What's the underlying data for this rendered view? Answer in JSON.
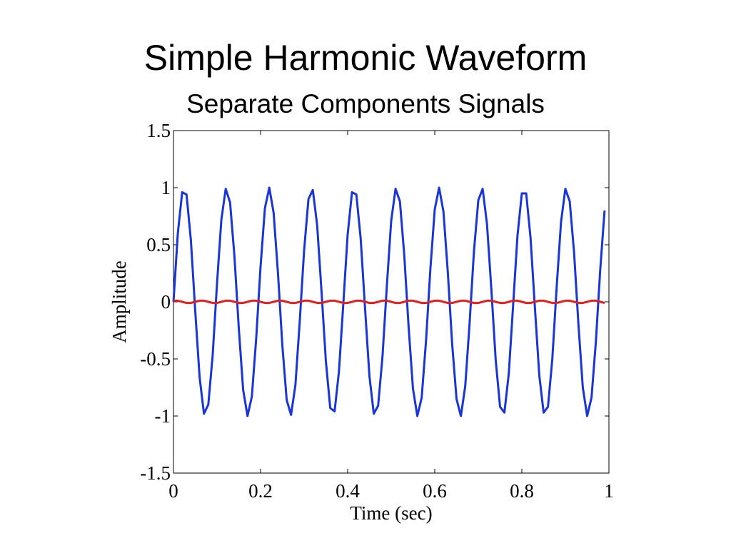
{
  "chart_data": {
    "type": "line",
    "title": "Simple Harmonic Waveform",
    "subtitle": "Separate Components Signals",
    "x_label": "Time (sec)",
    "y_label": "Amplitude",
    "xlim": [
      0,
      1
    ],
    "xticks": [
      0,
      0.2,
      0.4,
      0.6,
      0.8,
      1
    ],
    "ylim": [
      -1.5,
      1.5
    ],
    "yticks": [
      -1.5,
      -1,
      -0.5,
      0,
      0.5,
      1,
      1.5
    ],
    "x": [
      0,
      0.01,
      0.02,
      0.03,
      0.04,
      0.05,
      0.06,
      0.07,
      0.08,
      0.09,
      0.1,
      0.11,
      0.12,
      0.13,
      0.14,
      0.15,
      0.16,
      0.17,
      0.18,
      0.19,
      0.2,
      0.21,
      0.22,
      0.23,
      0.24,
      0.25,
      0.26,
      0.27,
      0.28,
      0.29,
      0.3,
      0.31,
      0.32,
      0.33,
      0.34,
      0.35,
      0.36,
      0.37,
      0.38,
      0.39,
      0.4,
      0.41,
      0.42,
      0.43,
      0.44,
      0.45,
      0.46,
      0.47,
      0.48,
      0.49,
      0.5,
      0.51,
      0.52,
      0.53,
      0.54,
      0.55,
      0.56,
      0.57,
      0.58,
      0.59,
      0.6,
      0.61,
      0.62,
      0.63,
      0.64,
      0.65,
      0.66,
      0.67,
      0.68,
      0.69,
      0.7,
      0.71,
      0.72,
      0.73,
      0.74,
      0.75,
      0.76,
      0.77,
      0.78,
      0.79,
      0.8,
      0.81,
      0.82,
      0.83,
      0.84,
      0.85,
      0.86,
      0.87,
      0.88,
      0.89,
      0.9,
      0.91,
      0.92,
      0.93,
      0.94,
      0.95,
      0.96,
      0.97,
      0.98,
      0.99
    ],
    "series": [
      {
        "color": "#1a35d6",
        "values": [
          0,
          0.6,
          0.96,
          0.94,
          0.54,
          -0.08,
          -0.66,
          -0.98,
          -0.9,
          -0.47,
          0.16,
          0.72,
          0.99,
          0.87,
          0.4,
          -0.23,
          -0.77,
          -1,
          -0.83,
          -0.32,
          0.31,
          0.82,
          1,
          0.78,
          0.25,
          -0.38,
          -0.86,
          -0.99,
          -0.73,
          -0.17,
          0.45,
          0.9,
          0.98,
          0.67,
          0.09,
          -0.52,
          -0.93,
          -0.96,
          -0.61,
          -0.02,
          0.59,
          0.96,
          0.94,
          0.55,
          -0.06,
          -0.65,
          -0.98,
          -0.91,
          -0.48,
          0.14,
          0.71,
          0.99,
          0.88,
          0.41,
          -0.22,
          -0.76,
          -1,
          -0.84,
          -0.34,
          0.29,
          0.81,
          1,
          0.79,
          0.26,
          -0.37,
          -0.85,
          -1,
          -0.74,
          -0.19,
          0.44,
          0.89,
          0.99,
          0.68,
          0.11,
          -0.51,
          -0.92,
          -0.97,
          -0.63,
          -0.03,
          0.58,
          0.95,
          0.95,
          0.56,
          -0.05,
          -0.64,
          -0.97,
          -0.92,
          -0.5,
          0.13,
          0.7,
          0.99,
          0.88,
          0.43,
          -0.2,
          -0.75,
          -1,
          -0.84,
          -0.35,
          0.28,
          0.8
        ]
      },
      {
        "color": "#e0201e",
        "values": [
          0.01,
          0.01,
          0,
          -0.01,
          -0.01,
          0,
          0.01,
          0.01,
          0,
          -0.01,
          -0.01,
          0,
          0.01,
          0.01,
          0,
          -0.01,
          -0.01,
          0,
          0.01,
          0.01,
          0,
          -0.01,
          -0.01,
          0,
          0.01,
          0.01,
          0,
          -0.01,
          -0.01,
          0,
          0.01,
          0.01,
          0,
          -0.01,
          -0.01,
          0,
          0.01,
          0.01,
          0,
          -0.01,
          -0.01,
          0,
          0.01,
          0.01,
          0,
          -0.01,
          -0.01,
          0,
          0.01,
          0.01,
          0,
          -0.01,
          -0.01,
          0,
          0.01,
          0.01,
          0,
          -0.01,
          -0.01,
          0,
          0.01,
          0.01,
          0,
          -0.01,
          -0.01,
          0,
          0.01,
          0.01,
          0,
          -0.01,
          -0.01,
          0,
          0.01,
          0.01,
          0,
          -0.01,
          -0.01,
          0,
          0.01,
          0.01,
          0,
          -0.01,
          -0.01,
          0,
          0.01,
          0.01,
          0,
          -0.01,
          -0.01,
          0,
          0.01,
          0.01,
          0,
          -0.01,
          -0.01,
          0,
          0.01,
          0.01,
          0,
          -0.01
        ]
      }
    ]
  }
}
